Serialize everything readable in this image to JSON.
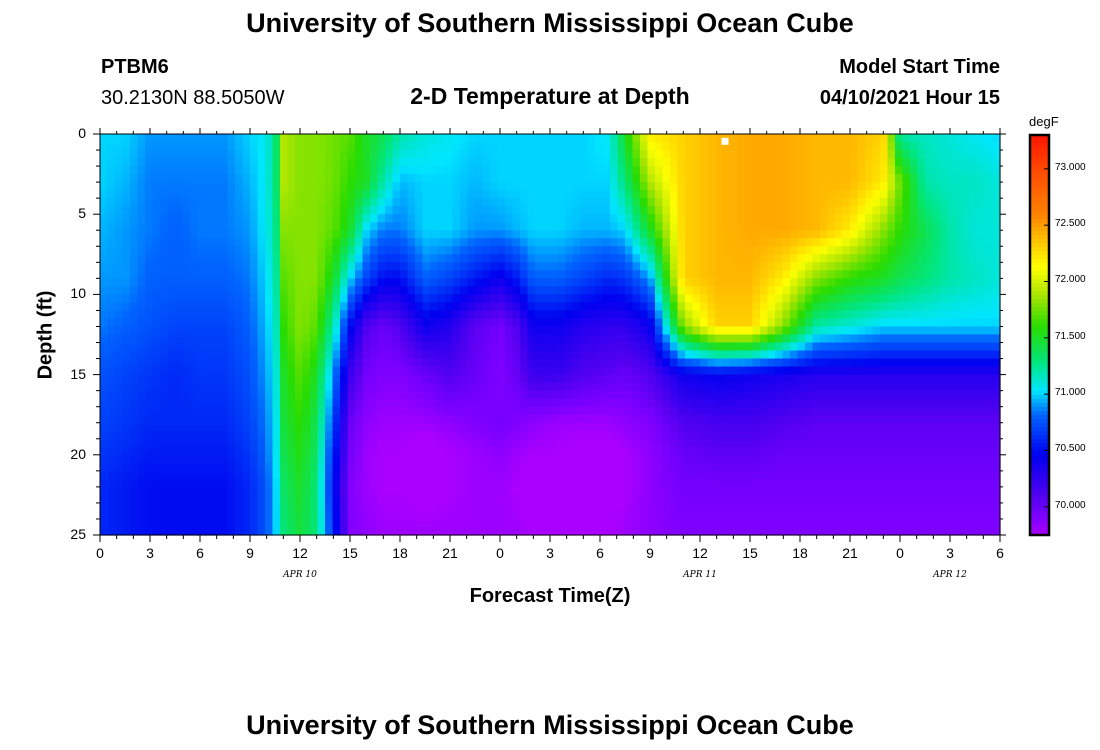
{
  "header": {
    "title_top": "University of Southern Mississippi Ocean Cube",
    "title_bottom": "University of Southern Mississippi Ocean Cube",
    "station_id": "PTBM6",
    "coords": "30.2130N  88.5050W",
    "plot_title": "2-D Temperature at Depth",
    "model_start_label": "Model Start Time",
    "model_start_value": "04/10/2021 Hour 15"
  },
  "chart_data": {
    "type": "heatmap",
    "title": "2-D Temperature at Depth",
    "xlabel": "Forecast Time(Z)",
    "ylabel": "Depth (ft)",
    "x_tick_labels": [
      "0",
      "3",
      "6",
      "9",
      "12",
      "15",
      "18",
      "21",
      "0",
      "3",
      "6",
      "9",
      "12",
      "15",
      "18",
      "21",
      "0",
      "3",
      "6"
    ],
    "x_date_labels": [
      {
        "label": "APR 10",
        "hour": 12
      },
      {
        "label": "APR 11",
        "hour": 36
      },
      {
        "label": "APR 12",
        "hour": 51
      }
    ],
    "x_range_hours": [
      0,
      54
    ],
    "y_tick_labels": [
      "0",
      "5",
      "10",
      "15",
      "20",
      "25"
    ],
    "y_range_ft": [
      0,
      25
    ],
    "colorbar": {
      "unit": "degF",
      "range": [
        69.75,
        73.3
      ],
      "tick_labels": [
        "73.000",
        "72.500",
        "72.000",
        "71.500",
        "71.000",
        "70.500",
        "70.000"
      ],
      "tick_values": [
        73.0,
        72.5,
        72.0,
        71.5,
        71.0,
        70.5,
        70.0
      ]
    },
    "marker": {
      "hour": 37.5,
      "depth_ft": 0.3
    },
    "temperature_degF": {
      "hours": [
        0,
        1.5,
        3,
        4.5,
        6,
        7.5,
        9,
        9.9,
        10.5,
        11,
        12,
        13,
        14,
        15,
        16,
        17,
        18,
        19.5,
        21,
        22.5,
        24,
        25,
        26,
        27.5,
        29,
        30.5,
        31.5,
        33,
        35,
        37,
        39,
        41,
        43,
        45,
        47,
        48,
        49.5,
        51,
        52.5,
        54
      ],
      "depths_ft": [
        0,
        3,
        6,
        9,
        12,
        15,
        18,
        20,
        22,
        25
      ],
      "rows": [
        [
          71.0,
          71.0,
          70.9,
          70.9,
          70.9,
          70.9,
          71.0,
          71.05,
          71.25,
          71.9,
          71.8,
          71.8,
          71.75,
          71.7,
          71.5,
          71.4,
          71.2,
          71.1,
          71.05,
          71.0,
          71.0,
          71.0,
          71.0,
          71.0,
          71.0,
          71.05,
          71.5,
          72.2,
          72.3,
          72.4,
          72.45,
          72.45,
          72.4,
          72.4,
          72.3,
          71.2,
          71.15,
          71.1,
          71.05,
          71.0
        ],
        [
          71.0,
          70.95,
          70.85,
          70.85,
          70.85,
          70.85,
          70.95,
          71.05,
          71.25,
          71.9,
          71.8,
          71.8,
          71.75,
          71.6,
          71.5,
          71.2,
          70.95,
          71.0,
          71.0,
          70.95,
          71.0,
          71.0,
          71.0,
          71.0,
          71.0,
          71.0,
          71.3,
          71.9,
          72.3,
          72.4,
          72.45,
          72.45,
          72.4,
          72.4,
          72.2,
          71.75,
          71.2,
          71.15,
          71.15,
          71.1
        ],
        [
          70.95,
          70.9,
          70.85,
          70.8,
          70.85,
          70.85,
          70.9,
          71.05,
          71.2,
          71.8,
          71.8,
          71.8,
          71.7,
          71.5,
          71.0,
          70.85,
          70.85,
          71.0,
          71.0,
          70.9,
          70.9,
          70.95,
          71.0,
          71.0,
          70.95,
          70.95,
          71.0,
          71.5,
          72.3,
          72.4,
          72.45,
          72.45,
          72.4,
          72.2,
          71.8,
          71.6,
          71.4,
          71.2,
          71.1,
          71.1
        ],
        [
          70.9,
          70.9,
          70.8,
          70.8,
          70.8,
          70.8,
          70.85,
          71.0,
          71.15,
          71.7,
          71.8,
          71.8,
          71.5,
          71.0,
          70.7,
          70.5,
          70.5,
          70.8,
          70.7,
          70.55,
          70.4,
          70.55,
          70.8,
          70.8,
          70.7,
          70.6,
          70.65,
          70.9,
          72.3,
          72.4,
          72.4,
          72.2,
          71.8,
          71.6,
          71.5,
          71.4,
          71.3,
          71.2,
          71.15,
          71.1
        ],
        [
          70.85,
          70.8,
          70.75,
          70.7,
          70.7,
          70.7,
          70.8,
          70.95,
          71.1,
          71.6,
          71.8,
          71.7,
          71.2,
          70.5,
          70.1,
          70.0,
          70.1,
          70.4,
          70.3,
          70.05,
          69.95,
          70.1,
          70.4,
          70.4,
          70.3,
          70.25,
          70.25,
          70.4,
          71.8,
          72.3,
          72.3,
          71.8,
          71.2,
          71.1,
          71.0,
          71.0,
          71.0,
          71.0,
          71.0,
          71.0
        ],
        [
          70.75,
          70.7,
          70.65,
          70.6,
          70.65,
          70.65,
          70.75,
          70.9,
          71.05,
          71.5,
          71.7,
          71.5,
          70.9,
          70.2,
          69.95,
          69.9,
          69.9,
          70.0,
          70.1,
          70.0,
          69.9,
          70.0,
          70.2,
          70.2,
          70.1,
          70.05,
          70.0,
          70.1,
          70.4,
          70.45,
          70.4,
          70.35,
          70.3,
          70.3,
          70.3,
          70.3,
          70.3,
          70.3,
          70.3,
          70.3
        ],
        [
          70.7,
          70.65,
          70.6,
          70.6,
          70.6,
          70.6,
          70.7,
          70.85,
          71.0,
          71.45,
          71.6,
          71.4,
          70.7,
          70.0,
          69.85,
          69.8,
          69.8,
          69.8,
          69.85,
          69.9,
          69.95,
          69.9,
          69.85,
          69.8,
          69.8,
          69.8,
          69.85,
          69.9,
          70.1,
          70.15,
          70.15,
          70.1,
          70.05,
          70.05,
          70.05,
          70.05,
          70.05,
          70.05,
          70.05,
          70.05
        ],
        [
          70.65,
          70.6,
          70.55,
          70.55,
          70.55,
          70.55,
          70.65,
          70.8,
          71.0,
          71.4,
          71.55,
          71.35,
          70.6,
          69.95,
          69.8,
          69.75,
          69.75,
          69.65,
          69.75,
          69.8,
          69.85,
          69.8,
          69.75,
          69.75,
          69.7,
          69.7,
          69.75,
          69.85,
          70.0,
          70.05,
          70.05,
          70.0,
          70.0,
          70.0,
          70.0,
          70.0,
          70.0,
          70.0,
          70.0,
          70.0
        ],
        [
          70.6,
          70.55,
          70.5,
          70.5,
          70.5,
          70.5,
          70.6,
          70.75,
          70.95,
          71.35,
          71.5,
          71.3,
          70.5,
          69.9,
          69.8,
          69.75,
          69.75,
          69.7,
          69.75,
          69.8,
          69.8,
          69.75,
          69.65,
          69.6,
          69.6,
          69.65,
          69.75,
          69.85,
          69.95,
          69.95,
          69.95,
          69.95,
          69.95,
          69.95,
          69.95,
          69.95,
          69.95,
          69.95,
          69.95,
          69.95
        ],
        [
          70.6,
          70.55,
          70.5,
          70.5,
          70.5,
          70.5,
          70.6,
          70.75,
          70.95,
          71.3,
          71.45,
          71.3,
          70.6,
          69.9,
          69.85,
          69.8,
          69.8,
          69.8,
          69.8,
          69.8,
          69.8,
          69.8,
          69.75,
          69.7,
          69.7,
          69.75,
          69.8,
          69.85,
          69.9,
          69.9,
          69.9,
          69.9,
          69.9,
          69.9,
          69.9,
          69.9,
          69.9,
          69.9,
          69.9,
          69.9
        ]
      ]
    }
  }
}
